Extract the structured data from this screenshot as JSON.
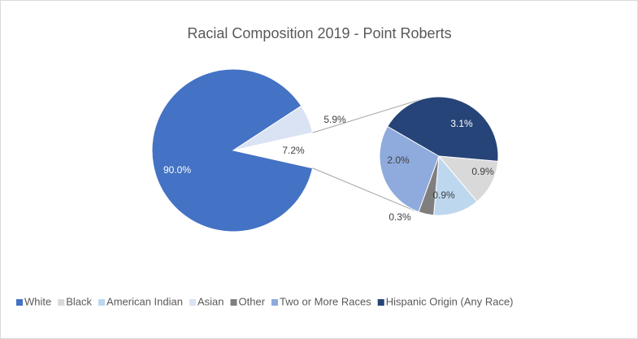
{
  "chart_data": {
    "type": "pie-of-pie",
    "title": "Racial Composition 2019 - Point Roberts",
    "categories": [
      "White",
      "Black",
      "American Indian",
      "Asian",
      "Other",
      "Two or More Races",
      "Hispanic Origin (Any Race)"
    ],
    "values": [
      90.0,
      0.9,
      0.9,
      5.9,
      0.3,
      2.0,
      3.1
    ],
    "value_labels": [
      "90.0%",
      "0.9%",
      "0.9%",
      "5.9%",
      "0.3%",
      "2.0%",
      "3.1%"
    ],
    "colors": [
      "#4472c4",
      "#d9d9d9",
      "#bdd7ee",
      "#dae3f3",
      "#7f7f7f",
      "#8faadc",
      "#264478"
    ],
    "plot": [
      "primary",
      "secondary",
      "secondary",
      "primary",
      "secondary",
      "secondary",
      "secondary"
    ],
    "other_value": 7.2,
    "other_label": "7.2%",
    "legend": "bottom"
  }
}
